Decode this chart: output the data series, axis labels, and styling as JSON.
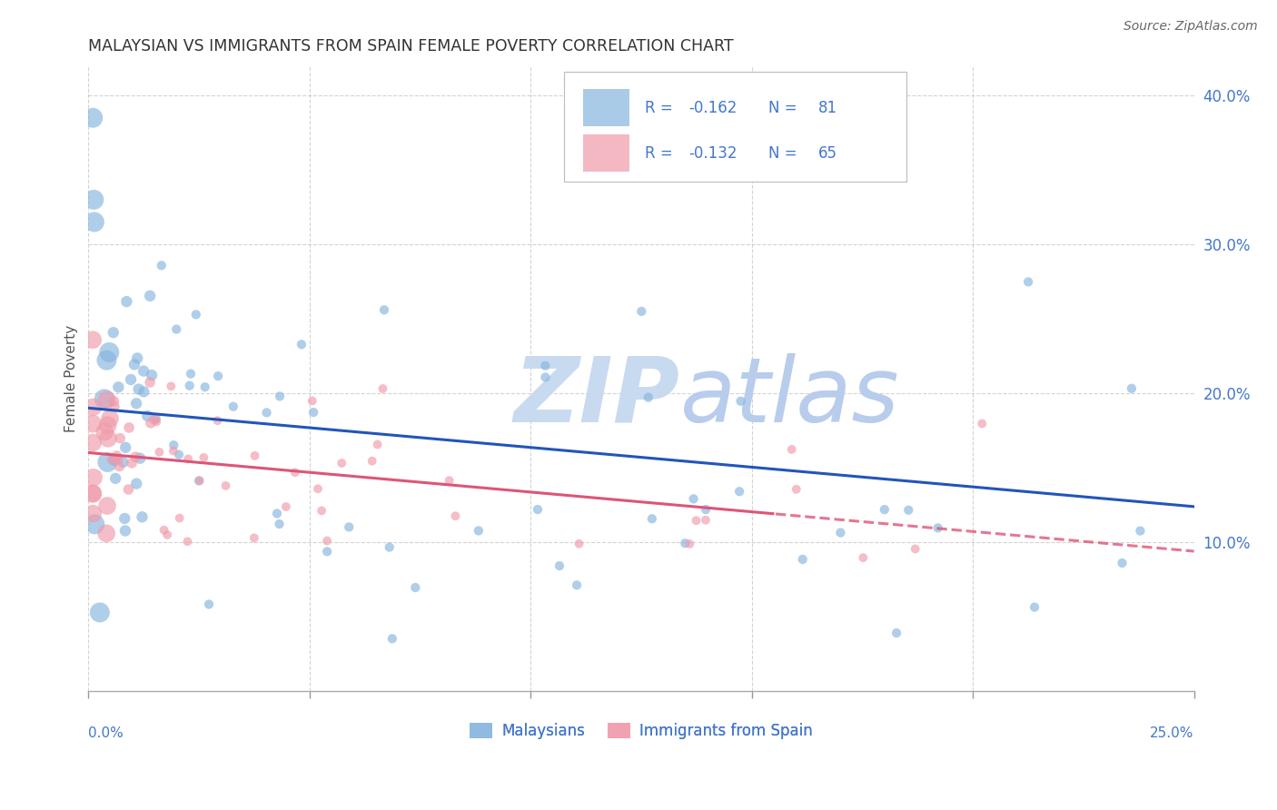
{
  "title": "MALAYSIAN VS IMMIGRANTS FROM SPAIN FEMALE POVERTY CORRELATION CHART",
  "source": "Source: ZipAtlas.com",
  "ylabel": "Female Poverty",
  "xlim": [
    0.0,
    0.25
  ],
  "ylim": [
    0.0,
    0.42
  ],
  "yticks": [
    0.1,
    0.2,
    0.3,
    0.4
  ],
  "ytick_labels": [
    "10.0%",
    "20.0%",
    "30.0%",
    "40.0%"
  ],
  "blue_color": "#85b5de",
  "pink_color": "#f09aaa",
  "trend_blue": "#2255bb",
  "trend_pink": "#dd5577",
  "legend_text_color": "#4477cc",
  "legend_value_color": "#4477cc",
  "axis_tick_color": "#4477cc",
  "title_color": "#333333",
  "watermark_zip_color": "#c8daf0",
  "watermark_atlas_color": "#b8ccec",
  "grid_color": "#c8c8c8",
  "background_color": "#ffffff"
}
